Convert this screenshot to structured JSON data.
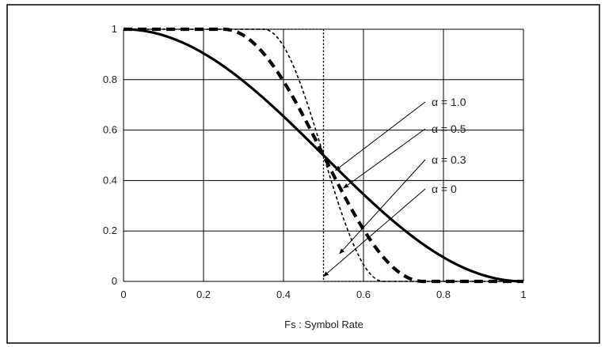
{
  "chart_data": {
    "type": "line",
    "title": "",
    "xlabel": "Fs : Symbol Rate",
    "ylabel": "",
    "xlim": [
      0,
      1
    ],
    "ylim": [
      0,
      1
    ],
    "x_ticks": [
      "0",
      "0.2",
      "0.4",
      "0.6",
      "0.8",
      "1"
    ],
    "y_ticks": [
      "0",
      "0.2",
      "0.4",
      "0.6",
      "0.8",
      "1"
    ],
    "grid": true,
    "x_tick_values": [
      0,
      0.2,
      0.4,
      0.6,
      0.8,
      1
    ],
    "y_tick_values": [
      0,
      0.2,
      0.4,
      0.6,
      0.8,
      1
    ],
    "series": [
      {
        "label": "α = 1.0",
        "alpha": 1.0,
        "line_style": "solid-thick"
      },
      {
        "label": "α = 0.5",
        "alpha": 0.5,
        "line_style": "dashed-thick"
      },
      {
        "label": "α = 0.3",
        "alpha": 0.3,
        "line_style": "dashed-thin"
      },
      {
        "label": "α = 0",
        "alpha": 0,
        "line_style": "dotted"
      }
    ]
  }
}
